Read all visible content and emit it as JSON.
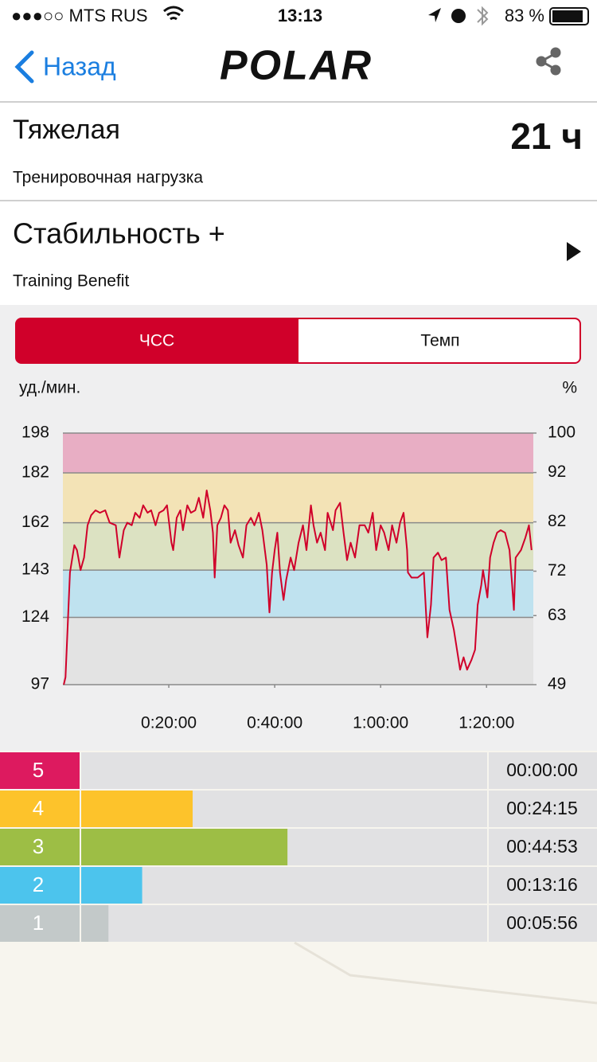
{
  "status_bar": {
    "carrier": "●●●○○ MTS RUS",
    "time": "13:13",
    "battery": "83 %"
  },
  "nav": {
    "back": "Назад",
    "logo": "POLAR"
  },
  "load": {
    "title": "Тяжелая",
    "value": "21 ч",
    "label": "Тренировочная нагрузка"
  },
  "benefit": {
    "title": "Стабильность +",
    "label": "Training Benefit"
  },
  "tabs": [
    "ЧСС",
    "Темп"
  ],
  "active_tab": 0,
  "chart_data": [
    {
      "type": "line",
      "y_label": "уд./мин.",
      "y2_label": "%",
      "color": "#d0002a",
      "xlim": [
        0,
        5330
      ],
      "xticks": [
        {
          "value": 1200,
          "label": "0:20:00"
        },
        {
          "value": 2400,
          "label": "0:40:00"
        },
        {
          "value": 3600,
          "label": "1:00:00"
        },
        {
          "value": 4800,
          "label": "1:20:00"
        }
      ],
      "ylim": [
        97,
        198
      ],
      "yticks": [
        97,
        124,
        143,
        162,
        182,
        198
      ],
      "y2lim": [
        49,
        100
      ],
      "y2ticks": [
        49,
        63,
        72,
        82,
        92,
        100
      ],
      "grid": true,
      "bands": [
        {
          "from": 97,
          "to": 124,
          "color": "#e3e3e3"
        },
        {
          "from": 124,
          "to": 143,
          "color": "#bfe2ef"
        },
        {
          "from": 143,
          "to": 162,
          "color": "#dce2c2"
        },
        {
          "from": 162,
          "to": 182,
          "color": "#f3e3b6"
        },
        {
          "from": 182,
          "to": 198,
          "color": "#e8aec4"
        }
      ],
      "x": [
        10,
        30,
        80,
        130,
        160,
        200,
        240,
        280,
        320,
        370,
        420,
        480,
        530,
        600,
        640,
        690,
        730,
        780,
        820,
        870,
        910,
        960,
        1000,
        1050,
        1090,
        1140,
        1180,
        1230,
        1250,
        1290,
        1330,
        1360,
        1410,
        1450,
        1500,
        1540,
        1590,
        1630,
        1670,
        1700,
        1720,
        1750,
        1790,
        1830,
        1870,
        1900,
        1950,
        1990,
        2040,
        2080,
        2130,
        2170,
        2220,
        2260,
        2310,
        2340,
        2370,
        2400,
        2430,
        2460,
        2500,
        2530,
        2580,
        2620,
        2670,
        2720,
        2760,
        2810,
        2840,
        2880,
        2920,
        2970,
        3000,
        3060,
        3090,
        3140,
        3180,
        3220,
        3260,
        3310,
        3360,
        3420,
        3460,
        3510,
        3550,
        3600,
        3640,
        3690,
        3730,
        3780,
        3820,
        3860,
        3900,
        3910,
        3950,
        4020,
        4090,
        4130,
        4170,
        4200,
        4250,
        4290,
        4340,
        4380,
        4430,
        4470,
        4500,
        4540,
        4580,
        4630,
        4670,
        4700,
        4740,
        4760,
        4810,
        4840,
        4880,
        4920,
        4960,
        5010,
        5060,
        5090,
        5110,
        5130,
        5190,
        5240,
        5280,
        5310
      ],
      "values": [
        97,
        100,
        142,
        153,
        151,
        143,
        148,
        161,
        165,
        167,
        166,
        167,
        162,
        161,
        148,
        159,
        162,
        161,
        166,
        164,
        169,
        166,
        167,
        161,
        166,
        167,
        169,
        154,
        151,
        164,
        167,
        159,
        169,
        166,
        167,
        172,
        164,
        175,
        167,
        158,
        140,
        161,
        164,
        169,
        167,
        154,
        159,
        153,
        148,
        161,
        164,
        161,
        166,
        159,
        145,
        126,
        142,
        151,
        158,
        142,
        131,
        139,
        148,
        143,
        154,
        161,
        151,
        169,
        161,
        154,
        158,
        151,
        166,
        159,
        167,
        170,
        158,
        147,
        154,
        148,
        161,
        161,
        158,
        166,
        151,
        161,
        158,
        151,
        161,
        154,
        162,
        166,
        151,
        142,
        140,
        140,
        142,
        116,
        129,
        148,
        150,
        147,
        148,
        127,
        119,
        110,
        103,
        108,
        103,
        107,
        111,
        129,
        137,
        143,
        132,
        148,
        154,
        158,
        159,
        158,
        151,
        137,
        127,
        148,
        151,
        156,
        161,
        151
      ]
    },
    {
      "type": "bar",
      "orientation": "horizontal",
      "categories": [
        "5",
        "4",
        "3",
        "2",
        "1"
      ],
      "values": [
        0,
        1455,
        2693,
        796,
        356
      ],
      "value_labels": [
        "00:00:00",
        "00:24:15",
        "00:44:53",
        "00:13:16",
        "00:05:56"
      ],
      "colors": [
        "#dd1a5f",
        "#fdc32b",
        "#9dbe45",
        "#4cc4ed",
        "#c3c9c9"
      ],
      "xlim": [
        0,
        5300
      ]
    }
  ]
}
